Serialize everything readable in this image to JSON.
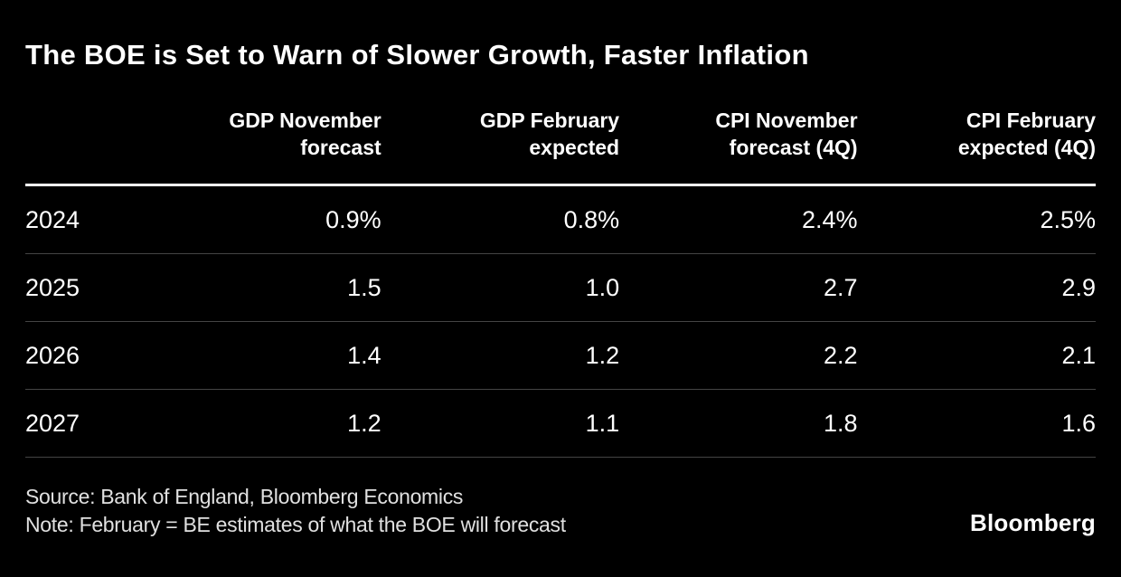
{
  "chart_title": "The BOE is Set to Warn of Slower Growth, Faster Inflation",
  "table": {
    "headers": [
      {
        "line1": "GDP November",
        "line2": "forecast"
      },
      {
        "line1": "GDP February",
        "line2": "expected"
      },
      {
        "line1": "CPI November",
        "line2": "forecast (4Q)"
      },
      {
        "line1": "CPI February",
        "line2": "expected (4Q)"
      }
    ],
    "rows": [
      {
        "year": "2024",
        "values": [
          "0.9%",
          "0.8%",
          "2.4%",
          "2.5%"
        ]
      },
      {
        "year": "2025",
        "values": [
          "1.5",
          "1.0",
          "2.7",
          "2.9"
        ]
      },
      {
        "year": "2026",
        "values": [
          "1.4",
          "1.2",
          "2.2",
          "2.1"
        ]
      },
      {
        "year": "2027",
        "values": [
          "1.2",
          "1.1",
          "1.8",
          "1.6"
        ]
      }
    ]
  },
  "chart_data": {
    "type": "table",
    "title": "The BOE is Set to Warn of Slower Growth, Faster Inflation",
    "categories": [
      "2024",
      "2025",
      "2026",
      "2027"
    ],
    "series": [
      {
        "name": "GDP November forecast",
        "values": [
          0.9,
          1.5,
          1.4,
          1.2
        ]
      },
      {
        "name": "GDP February expected",
        "values": [
          0.8,
          1.0,
          1.2,
          1.1
        ]
      },
      {
        "name": "CPI November forecast (4Q)",
        "values": [
          2.4,
          2.7,
          2.2,
          1.8
        ]
      },
      {
        "name": "CPI February expected (4Q)",
        "values": [
          2.5,
          2.9,
          2.1,
          1.6
        ]
      }
    ],
    "units": "%"
  },
  "footer": {
    "source": "Source: Bank of England, Bloomberg Economics",
    "note": "Note: February = BE estimates of what the BOE will forecast",
    "brand": "Bloomberg"
  },
  "colors": {
    "background": "#000000",
    "text": "#ffffff",
    "divider": "#444444",
    "header_rule": "#ffffff",
    "footer_text": "#e0e0e0"
  }
}
